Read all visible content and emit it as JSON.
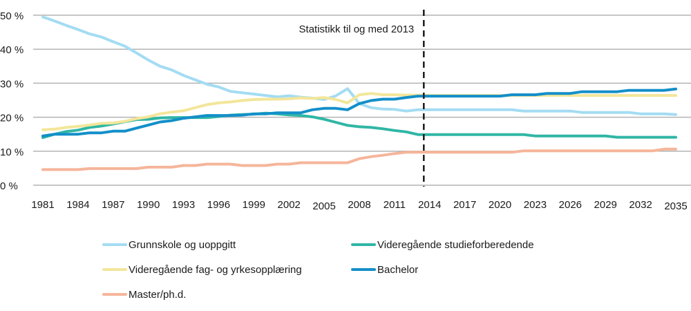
{
  "chart_data": {
    "type": "line",
    "title": "",
    "xlabel": "",
    "ylabel": "",
    "ylim": [
      0,
      50
    ],
    "xlim": [
      1981,
      2035
    ],
    "grid": true,
    "legend_position": "bottom",
    "y_ticks": [
      0,
      10,
      20,
      30,
      40,
      50
    ],
    "y_tick_labels": [
      "0 %",
      "10 %",
      "20 %",
      "30 %",
      "40 %",
      "50 %"
    ],
    "x_tick_labels": [
      "1981",
      "1984",
      "1987",
      "1990",
      "1993",
      "1996",
      "1999",
      "2002",
      "2005",
      "2008",
      "2011",
      "2014",
      "2017",
      "2020",
      "2023",
      "2026",
      "2029",
      "2032",
      "2035"
    ],
    "x_ticks": [
      1981,
      1984,
      1987,
      1990,
      1993,
      1996,
      1999,
      2002,
      2005,
      2008,
      2011,
      2014,
      2017,
      2020,
      2023,
      2026,
      2029,
      2032,
      2035
    ],
    "annotation": {
      "text": "Statistikk til og med 2013",
      "x": 2013.5
    },
    "x": [
      1981,
      1982,
      1983,
      1984,
      1985,
      1986,
      1987,
      1988,
      1989,
      1990,
      1991,
      1992,
      1993,
      1994,
      1995,
      1996,
      1997,
      1998,
      1999,
      2000,
      2001,
      2002,
      2003,
      2004,
      2005,
      2006,
      2007,
      2008,
      2009,
      2010,
      2011,
      2012,
      2013,
      2014,
      2015,
      2016,
      2017,
      2018,
      2019,
      2020,
      2021,
      2022,
      2023,
      2024,
      2025,
      2026,
      2027,
      2028,
      2029,
      2030,
      2031,
      2032,
      2033,
      2034,
      2035
    ],
    "series": [
      {
        "name": "Grunnskole og uoppgitt",
        "color": "#a3dcf3",
        "values": [
          49.5,
          48.3,
          47.0,
          45.8,
          44.5,
          43.6,
          42.2,
          40.9,
          38.9,
          36.8,
          35.0,
          33.9,
          32.3,
          31.0,
          29.7,
          28.9,
          27.6,
          27.2,
          26.8,
          26.4,
          26.0,
          26.3,
          25.9,
          25.6,
          25.2,
          26.3,
          28.4,
          24.0,
          22.8,
          22.4,
          22.3,
          21.8,
          22.2,
          22.2,
          22.2,
          22.2,
          22.2,
          22.2,
          22.2,
          22.2,
          22.2,
          21.8,
          21.8,
          21.8,
          21.8,
          21.8,
          21.4,
          21.4,
          21.4,
          21.4,
          21.4,
          21.0,
          21.0,
          21.0,
          20.8
        ]
      },
      {
        "name": "Videregående studieforberedende",
        "color": "#30b6a5",
        "values": [
          14.0,
          15.0,
          15.8,
          16.2,
          17.0,
          17.4,
          18.0,
          18.7,
          19.3,
          19.4,
          19.8,
          19.9,
          19.9,
          19.9,
          19.9,
          20.2,
          20.6,
          20.8,
          20.9,
          21.2,
          21.0,
          20.7,
          20.5,
          20.1,
          19.4,
          18.5,
          17.6,
          17.2,
          17.0,
          16.6,
          16.1,
          15.7,
          14.9,
          14.9,
          14.9,
          14.9,
          14.9,
          14.9,
          14.9,
          14.9,
          14.9,
          14.9,
          14.5,
          14.5,
          14.5,
          14.5,
          14.5,
          14.5,
          14.5,
          14.1,
          14.1,
          14.1,
          14.1,
          14.1,
          14.1
        ]
      },
      {
        "name": "Videregående fag- og yrkesopplæring",
        "color": "#f3e69a",
        "values": [
          16.3,
          16.5,
          17.0,
          17.3,
          17.7,
          18.2,
          18.3,
          18.8,
          19.6,
          20.1,
          21.0,
          21.5,
          21.9,
          22.8,
          23.7,
          24.2,
          24.5,
          24.9,
          25.2,
          25.3,
          25.3,
          25.4,
          25.7,
          25.5,
          25.8,
          25.2,
          24.2,
          26.6,
          27.0,
          26.6,
          26.6,
          26.5,
          26.5,
          26.4,
          26.4,
          26.4,
          26.4,
          26.4,
          26.4,
          26.4,
          26.4,
          26.4,
          26.4,
          26.4,
          26.4,
          26.4,
          26.4,
          26.4,
          26.4,
          26.4,
          26.4,
          26.4,
          26.4,
          26.4,
          26.4
        ]
      },
      {
        "name": "Bachelor",
        "color": "#138fc9",
        "values": [
          14.5,
          15.0,
          15.0,
          15.0,
          15.4,
          15.4,
          15.9,
          15.9,
          16.8,
          17.7,
          18.6,
          19.0,
          19.7,
          20.1,
          20.5,
          20.5,
          20.5,
          20.6,
          21.0,
          21.0,
          21.3,
          21.3,
          21.3,
          22.2,
          22.6,
          22.6,
          22.2,
          24.0,
          24.9,
          25.3,
          25.3,
          25.8,
          26.2,
          26.2,
          26.2,
          26.2,
          26.2,
          26.2,
          26.2,
          26.2,
          26.6,
          26.6,
          26.6,
          27.0,
          27.0,
          27.0,
          27.5,
          27.5,
          27.5,
          27.5,
          27.9,
          27.9,
          27.9,
          27.9,
          28.3
        ]
      },
      {
        "name": "Master/ph.d.",
        "color": "#f5b59a",
        "values": [
          4.6,
          4.6,
          4.6,
          4.6,
          4.9,
          4.9,
          4.9,
          4.9,
          4.9,
          5.3,
          5.3,
          5.3,
          5.8,
          5.8,
          6.2,
          6.2,
          6.2,
          5.8,
          5.8,
          5.8,
          6.2,
          6.2,
          6.6,
          6.6,
          6.6,
          6.6,
          6.6,
          7.8,
          8.4,
          8.8,
          9.3,
          9.7,
          9.7,
          9.7,
          9.7,
          9.7,
          9.7,
          9.7,
          9.7,
          9.7,
          9.7,
          10.1,
          10.1,
          10.1,
          10.1,
          10.1,
          10.1,
          10.1,
          10.1,
          10.1,
          10.1,
          10.1,
          10.1,
          10.6,
          10.6
        ]
      }
    ]
  }
}
